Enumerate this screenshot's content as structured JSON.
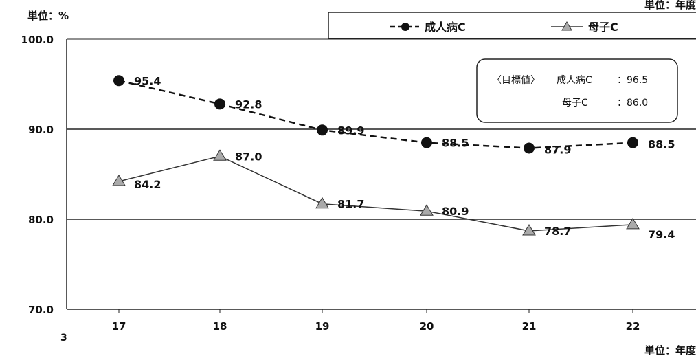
{
  "chart_data": {
    "type": "line",
    "y_unit_label": "単位：%",
    "x_unit_label_top": "単位：年度",
    "x_unit_label_bottom": "単位：年度",
    "page_number": "3",
    "categories": [
      "17",
      "18",
      "19",
      "20",
      "21",
      "22"
    ],
    "ylim": [
      70.0,
      100.0
    ],
    "y_ticks": [
      "100.0",
      "90.0",
      "80.0",
      "70.0"
    ],
    "y_tick_values": [
      100,
      90,
      80,
      70
    ],
    "grid_lines": [
      80,
      90
    ],
    "legend_position": "top",
    "series": [
      {
        "name": "成人病C",
        "values": [
          95.4,
          92.8,
          89.9,
          88.5,
          87.9,
          88.5
        ],
        "labels": [
          "95.4",
          "92.8",
          "89.9",
          "88.5",
          "87.9",
          "88.5"
        ],
        "marker": "circle",
        "line_style": "dashed",
        "color": "#111111"
      },
      {
        "name": "母子C",
        "values": [
          84.2,
          87.0,
          81.7,
          80.9,
          78.7,
          79.4
        ],
        "labels": [
          "84.2",
          "87.0",
          "81.7",
          "80.9",
          "78.7",
          "79.4"
        ],
        "marker": "triangle",
        "line_style": "solid",
        "color": "#333333",
        "marker_color": "#aaaaaa"
      }
    ],
    "target_box": {
      "heading": "〈目標値〉",
      "rows": [
        {
          "name": "成人病C",
          "value": "：96.5"
        },
        {
          "name": "母子C",
          "value": "：86.0"
        }
      ]
    }
  }
}
